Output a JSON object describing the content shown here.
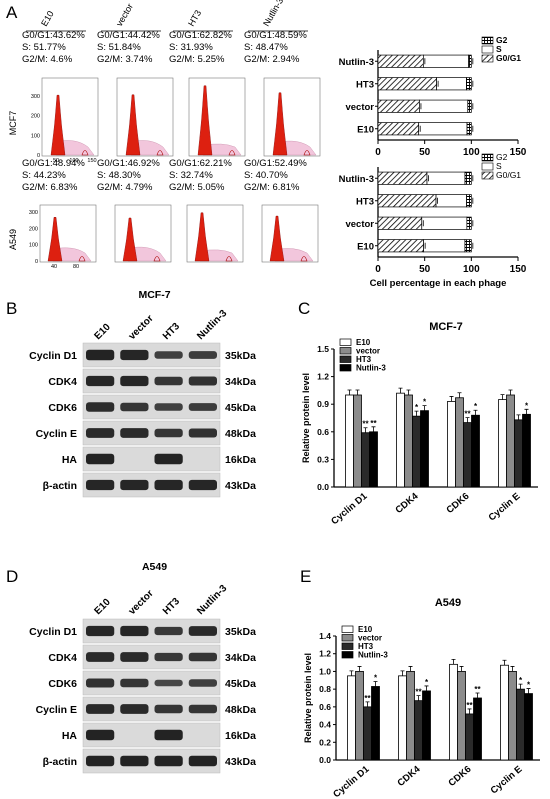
{
  "panel_labels": [
    "A",
    "B",
    "C",
    "D",
    "E"
  ],
  "flow": {
    "conditions": [
      "E10",
      "vector",
      "HT3",
      "Nutlin-3"
    ],
    "cells": [
      {
        "name": "MCF7",
        "stats": [
          [
            "G0/G1:43.62%",
            "S: 51.77%",
            "G2/M: 4.6%"
          ],
          [
            "G0/G1:44.42%",
            "S: 51.84%",
            "G2/M: 3.74%"
          ],
          [
            "G0/G1:62.82%",
            "S: 31.93%",
            "G2/M: 5.25%"
          ],
          [
            "G0/G1:48.59%",
            "S: 48.47%",
            "G2/M: 2.94%"
          ]
        ],
        "yticks": [
          "300",
          "200",
          "100",
          "0"
        ],
        "xticks": [
          "50",
          "100",
          "150"
        ]
      },
      {
        "name": "A549",
        "stats": [
          [
            "G0/G1:48.94%",
            "S: 44.23%",
            "G2/M: 6.83%"
          ],
          [
            "G0/G1:46.92%",
            "S: 48.30%",
            "G2/M: 4.79%"
          ],
          [
            "G0/G1:62.21%",
            "S: 32.74%",
            "G2/M: 5.05%"
          ],
          [
            "G0/G1:52.49%",
            "S: 40.70%",
            "G2/M: 6.81%"
          ]
        ],
        "yticks": [
          "300",
          "200",
          "100",
          "0"
        ],
        "xticks": [
          "40",
          "80"
        ]
      }
    ]
  },
  "chart_data": [
    {
      "type": "bar",
      "orientation": "horizontal",
      "stacked": true,
      "categories": [
        "Nutlin-3",
        "HT3",
        "vector",
        "E10"
      ],
      "series": [
        {
          "name": "G0/G1",
          "values": [
            48.6,
            62.8,
            44.4,
            43.6
          ]
        },
        {
          "name": "S",
          "values": [
            48.5,
            31.9,
            51.8,
            51.8
          ]
        },
        {
          "name": "G2",
          "values": [
            2.9,
            5.3,
            3.8,
            4.6
          ]
        }
      ],
      "xlim": [
        0,
        150
      ],
      "xticks": [
        0,
        50,
        100,
        150
      ],
      "legend": "top-right"
    },
    {
      "type": "bar",
      "orientation": "horizontal",
      "stacked": true,
      "categories": [
        "Nutlin-3",
        "HT3",
        "vector",
        "E10"
      ],
      "series": [
        {
          "name": "G0/G1",
          "values": [
            52.5,
            62.2,
            46.9,
            48.9
          ]
        },
        {
          "name": "S",
          "values": [
            40.7,
            32.7,
            48.3,
            44.2
          ]
        },
        {
          "name": "G2",
          "values": [
            6.8,
            5.1,
            4.8,
            6.9
          ]
        }
      ],
      "xlim": [
        0,
        150
      ],
      "xticks": [
        0,
        50,
        100,
        150
      ],
      "xlabel": "Cell percentage in each phage",
      "legend": "top-right"
    },
    {
      "type": "bar",
      "title": "MCF-7",
      "categories": [
        "Cyclin D1",
        "CDK4",
        "CDK6",
        "Cyclin E"
      ],
      "series": [
        {
          "name": "E10",
          "values": [
            1.0,
            1.02,
            0.93,
            0.95
          ]
        },
        {
          "name": "vector",
          "values": [
            1.0,
            1.0,
            0.97,
            1.0
          ]
        },
        {
          "name": "HT3",
          "values": [
            0.59,
            0.77,
            0.7,
            0.73
          ]
        },
        {
          "name": "Nutlin-3",
          "values": [
            0.6,
            0.83,
            0.78,
            0.79
          ]
        }
      ],
      "annotations": [
        [
          "",
          "",
          "**",
          "**"
        ],
        [
          "",
          "",
          "*",
          "*"
        ],
        [
          "",
          "",
          "**",
          "*"
        ],
        [
          "",
          "",
          "",
          "*"
        ]
      ],
      "ylabel": "Relative protein level",
      "ylim": [
        0,
        1.5
      ],
      "yticks": [
        "0.0",
        "0.3",
        "0.6",
        "0.9",
        "1.2",
        "1.5"
      ],
      "legend": "top-left"
    },
    {
      "type": "bar",
      "title": "A549",
      "categories": [
        "Cyclin D1",
        "CDK4",
        "CDK6",
        "Cyclin E"
      ],
      "series": [
        {
          "name": "E10",
          "values": [
            0.95,
            0.95,
            1.08,
            1.07
          ]
        },
        {
          "name": "vector",
          "values": [
            1.0,
            1.0,
            1.0,
            1.0
          ]
        },
        {
          "name": "HT3",
          "values": [
            0.6,
            0.67,
            0.52,
            0.8
          ]
        },
        {
          "name": "Nutlin-3",
          "values": [
            0.83,
            0.78,
            0.7,
            0.75
          ]
        }
      ],
      "annotations": [
        [
          "",
          "",
          "**",
          "*"
        ],
        [
          "",
          "",
          "**",
          "*"
        ],
        [
          "",
          "",
          "**",
          "**"
        ],
        [
          "",
          "",
          "*",
          "*"
        ]
      ],
      "ylabel": "Relative protein level",
      "ylim": [
        0,
        1.4
      ],
      "yticks": [
        "0.0",
        "0.2",
        "0.4",
        "0.6",
        "0.8",
        "1.0",
        "1.2",
        "1.4"
      ],
      "legend": "top-left"
    }
  ],
  "blots": [
    {
      "title": "MCF-7",
      "lanes": [
        "E10",
        "vector",
        "HT3",
        "Nutlin-3"
      ],
      "rows": [
        {
          "name": "Cyclin D1",
          "size": "35kDa",
          "levels": [
            0.95,
            0.9,
            0.55,
            0.6
          ]
        },
        {
          "name": "CDK4",
          "size": "34kDa",
          "levels": [
            0.9,
            0.9,
            0.7,
            0.75
          ]
        },
        {
          "name": "CDK6",
          "size": "45kDa",
          "levels": [
            0.8,
            0.7,
            0.55,
            0.6
          ]
        },
        {
          "name": "Cyclin E",
          "size": "48kDa",
          "levels": [
            0.85,
            0.85,
            0.7,
            0.75
          ]
        },
        {
          "name": "HA",
          "size": "16kDa",
          "levels": [
            0.95,
            0.0,
            0.95,
            0.0
          ]
        },
        {
          "name": "β-actin",
          "size": "43kDa",
          "levels": [
            0.9,
            0.9,
            0.9,
            0.9
          ]
        }
      ]
    },
    {
      "title": "A549",
      "lanes": [
        "E10",
        "vector",
        "HT3",
        "Nutlin-3"
      ],
      "rows": [
        {
          "name": "Cyclin D1",
          "size": "35kDa",
          "levels": [
            0.9,
            0.9,
            0.65,
            0.85
          ]
        },
        {
          "name": "CDK4",
          "size": "34kDa",
          "levels": [
            0.85,
            0.85,
            0.65,
            0.7
          ]
        },
        {
          "name": "CDK6",
          "size": "45kDa",
          "levels": [
            0.75,
            0.7,
            0.45,
            0.55
          ]
        },
        {
          "name": "Cyclin E",
          "size": "48kDa",
          "levels": [
            0.85,
            0.85,
            0.7,
            0.7
          ]
        },
        {
          "name": "HA",
          "size": "16kDa",
          "levels": [
            0.95,
            0.0,
            0.95,
            0.0
          ]
        },
        {
          "name": "β-actin",
          "size": "43kDa",
          "levels": [
            0.95,
            0.95,
            0.95,
            0.95
          ]
        }
      ]
    }
  ],
  "colors": {
    "histogram_fill": "#dd2010",
    "histogram_s_fill": "#f2c6dc",
    "bar_e10": "#ffffff",
    "bar_vector": "#8c8c8c",
    "bar_ht3": "#2a2a2a",
    "bar_nutlin": "#000000"
  }
}
